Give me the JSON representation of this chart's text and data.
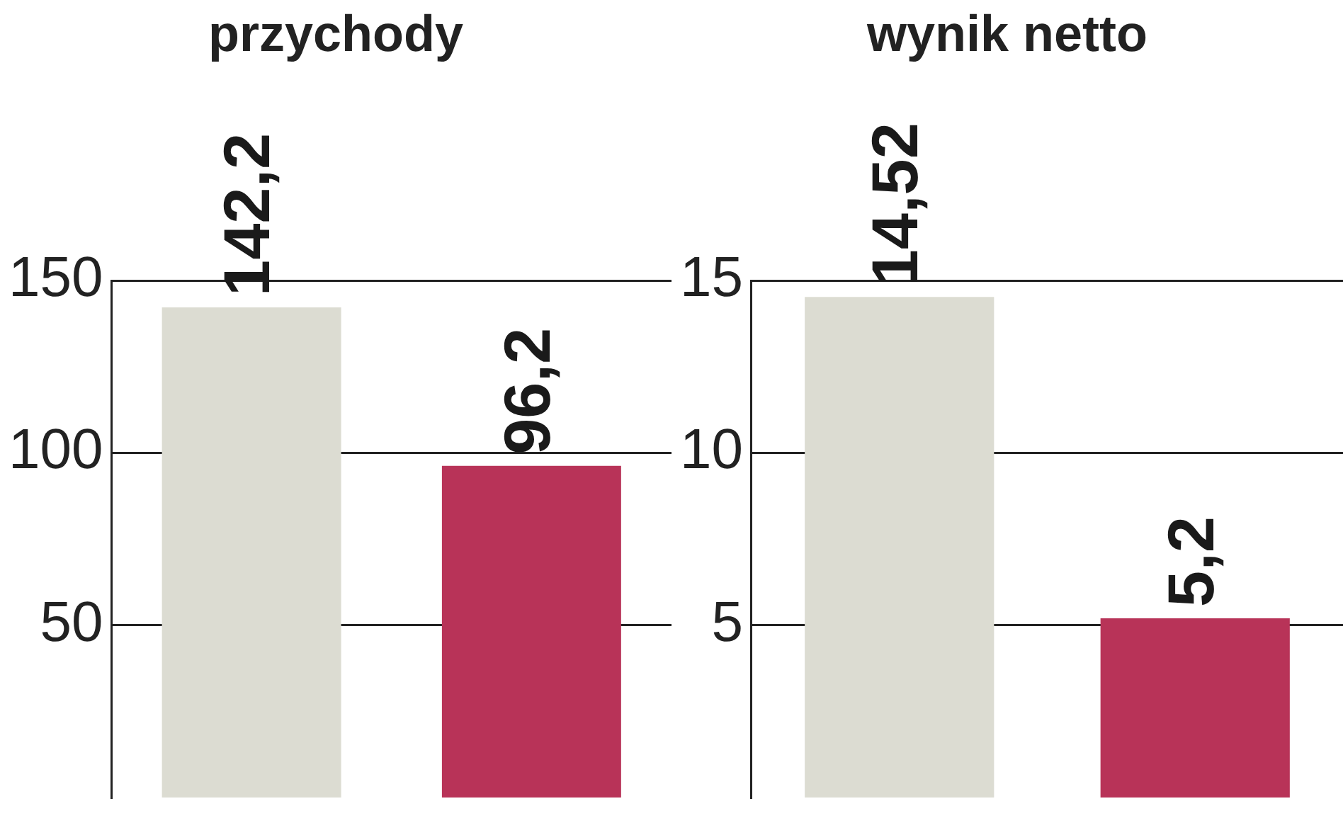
{
  "chart_data": [
    {
      "type": "bar",
      "title": "przychody",
      "categories": [
        null,
        null
      ],
      "values": [
        142.2,
        96.2
      ],
      "value_labels": [
        "142,2",
        "96,2"
      ],
      "colors": [
        "#dcdcd2",
        "#b83358"
      ],
      "ylim": [
        0,
        150
      ],
      "yticks": [
        50,
        100,
        150
      ],
      "grid": "y"
    },
    {
      "type": "bar",
      "title": "wynik netto",
      "categories": [
        null,
        null
      ],
      "values": [
        14.52,
        5.2
      ],
      "value_labels": [
        "14,52",
        "5,2"
      ],
      "colors": [
        "#dcdcd2",
        "#b83358"
      ],
      "ylim": [
        0,
        15
      ],
      "yticks": [
        5,
        10,
        15
      ],
      "grid": "y"
    }
  ]
}
